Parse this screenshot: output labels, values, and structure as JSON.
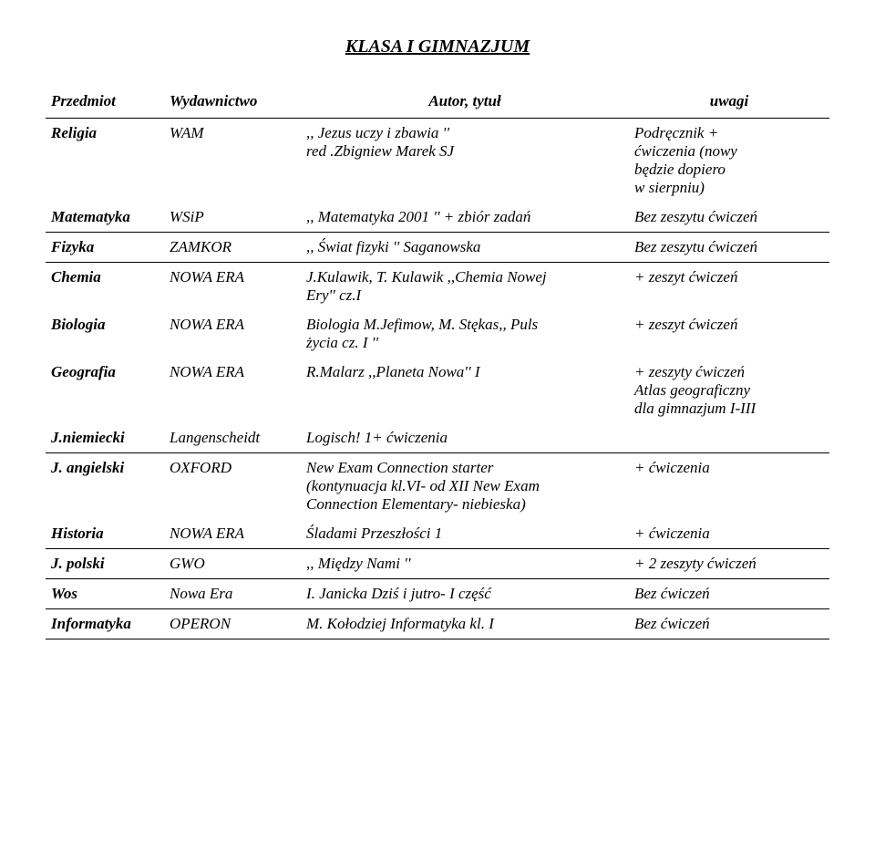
{
  "page_title": "KLASA I GIMNAZJUM",
  "headers": {
    "subject": "Przedmiot",
    "publisher": "Wydawnictwo",
    "title": "Autor, tytuł",
    "notes": "uwagi"
  },
  "rows": [
    {
      "subject": "Religia",
      "publisher": "WAM",
      "title": ",, Jezus uczy i zbawia ''\nred .Zbigniew Marek SJ",
      "notes": "Podręcznik +\nćwiczenia (nowy\nbędzie dopiero\nw sierpniu)"
    },
    {
      "subject": "Matematyka",
      "publisher": "WSiP",
      "title": ",, Matematyka 2001 '' + zbiór zadań",
      "notes": "Bez zeszytu ćwiczeń"
    }
  ],
  "rows2": [
    {
      "subject": "Fizyka",
      "publisher": "ZAMKOR",
      "title": ",, Świat fizyki '' Saganowska",
      "notes": "Bez zeszytu ćwiczeń"
    }
  ],
  "rows3": [
    {
      "subject": "Chemia",
      "publisher": "NOWA ERA",
      "title": "J.Kulawik, T. Kulawik ,,Chemia Nowej\nEry'' cz.I",
      "notes": "+ zeszyt ćwiczeń"
    },
    {
      "subject": "Biologia",
      "publisher": "NOWA ERA",
      "title": "Biologia M.Jefimow, M. Stękas,, Puls\nżycia cz. I ''",
      "notes": "+ zeszyt ćwiczeń"
    },
    {
      "subject": "Geografia",
      "publisher": "NOWA ERA",
      "title": "R.Malarz ,,Planeta Nowa'' I",
      "notes": "+ zeszyty ćwiczeń\nAtlas geograficzny\ndla gimnazjum I-III"
    },
    {
      "subject": "J.niemiecki",
      "publisher": "Langenscheidt",
      "title": "Logisch! 1+ ćwiczenia",
      "notes": ""
    }
  ],
  "rows4": [
    {
      "subject": "J. angielski",
      "publisher": "OXFORD",
      "title": "New Exam Connection starter\n(kontynuacja kl.VI- od XII New Exam\nConnection Elementary- niebieska)",
      "notes": "+ ćwiczenia"
    },
    {
      "subject": "Historia",
      "publisher": "NOWA ERA",
      "title": "Śladami Przeszłości 1",
      "notes": "+ ćwiczenia"
    }
  ],
  "rows5": [
    {
      "subject": "J. polski",
      "publisher": "GWO",
      "title": ",, Między Nami ''",
      "notes": "+ 2 zeszyty ćwiczeń"
    }
  ],
  "rows6": [
    {
      "subject": "Wos",
      "publisher": "Nowa Era",
      "title": "I. Janicka Dziś i jutro- I część",
      "notes": "Bez ćwiczeń"
    }
  ],
  "rows7": [
    {
      "subject": "Informatyka",
      "publisher": "OPERON",
      "title": "M. Kołodziej Informatyka kl. I",
      "notes": "Bez ćwiczeń"
    }
  ]
}
